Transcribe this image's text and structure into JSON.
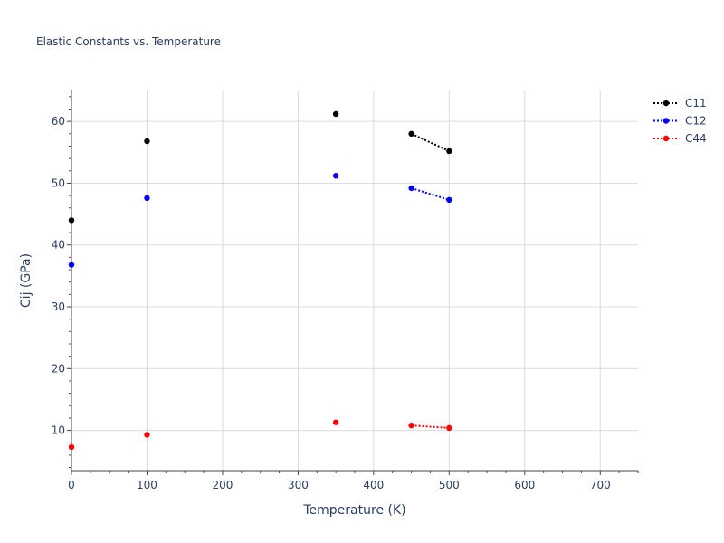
{
  "chart_data": {
    "type": "scatter",
    "title": "Elastic Constants vs. Temperature",
    "xlabel": "Temperature (K)",
    "ylabel": "Cij (GPa)",
    "xlim": [
      0,
      750
    ],
    "ylim": [
      3.5,
      65
    ],
    "xticks": [
      0,
      100,
      200,
      300,
      400,
      500,
      600,
      700
    ],
    "yticks": [
      10,
      20,
      30,
      40,
      50,
      60
    ],
    "grid": true,
    "legend_position": "top-right",
    "series": [
      {
        "name": "C11",
        "color": "#000000",
        "points": [
          {
            "x": 0,
            "y": 44.0
          },
          {
            "x": 100,
            "y": 56.8
          },
          {
            "x": 350,
            "y": 61.2
          },
          {
            "x": 450,
            "y": 58.0
          },
          {
            "x": 500,
            "y": 55.2
          }
        ],
        "dotted_segment": [
          3,
          4
        ]
      },
      {
        "name": "C12",
        "color": "#0000ff",
        "points": [
          {
            "x": 0,
            "y": 36.8
          },
          {
            "x": 100,
            "y": 47.6
          },
          {
            "x": 350,
            "y": 51.2
          },
          {
            "x": 450,
            "y": 49.2
          },
          {
            "x": 500,
            "y": 47.3
          }
        ],
        "dotted_segment": [
          3,
          4
        ]
      },
      {
        "name": "C44",
        "color": "#ff0000",
        "points": [
          {
            "x": 0,
            "y": 7.3
          },
          {
            "x": 100,
            "y": 9.3
          },
          {
            "x": 350,
            "y": 11.3
          },
          {
            "x": 450,
            "y": 10.8
          },
          {
            "x": 500,
            "y": 10.4
          }
        ],
        "dotted_segment": [
          3,
          4
        ]
      }
    ]
  }
}
